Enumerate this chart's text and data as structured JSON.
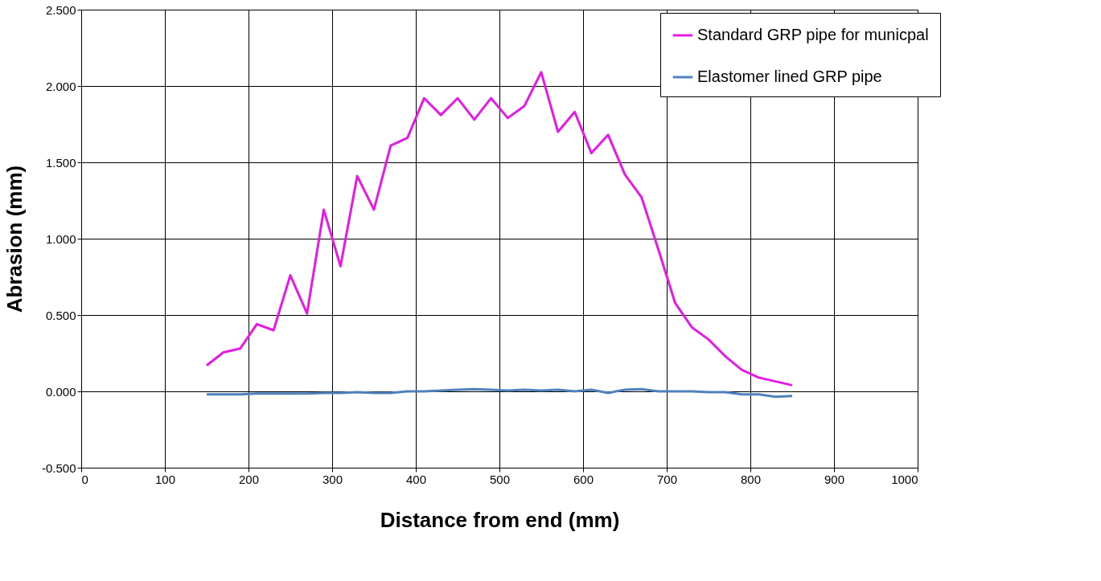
{
  "chart_data": {
    "type": "line",
    "xlabel": "Distance from end (mm)",
    "ylabel": "Abrasion (mm)",
    "x": [
      150,
      170,
      190,
      210,
      230,
      250,
      270,
      290,
      310,
      330,
      350,
      370,
      390,
      410,
      430,
      450,
      470,
      490,
      510,
      530,
      550,
      570,
      590,
      610,
      630,
      650,
      670,
      690,
      710,
      730,
      750,
      770,
      790,
      810,
      830,
      850
    ],
    "series": [
      {
        "name": "Standard GRP pipe for municpal",
        "color": "#e619e6",
        "values": [
          0.17,
          0.255,
          0.28,
          0.44,
          0.4,
          0.76,
          0.51,
          1.19,
          0.82,
          1.41,
          1.19,
          1.61,
          1.66,
          1.92,
          1.81,
          1.92,
          1.78,
          1.92,
          1.79,
          1.87,
          2.09,
          1.7,
          1.83,
          1.56,
          1.68,
          1.42,
          1.27,
          0.93,
          0.58,
          0.42,
          0.34,
          0.23,
          0.14,
          0.09,
          0.065,
          0.04
        ]
      },
      {
        "name": "Elastomer lined GRP pipe",
        "color": "#4f81bd",
        "values": [
          -0.02,
          -0.02,
          -0.02,
          -0.015,
          -0.015,
          -0.015,
          -0.015,
          -0.01,
          -0.01,
          -0.005,
          -0.01,
          -0.01,
          0.0,
          0.0,
          0.005,
          0.01,
          0.015,
          0.01,
          0.005,
          0.01,
          0.005,
          0.01,
          0.0,
          0.01,
          -0.01,
          0.01,
          0.015,
          0.0,
          0.0,
          0.0,
          -0.005,
          -0.005,
          -0.02,
          -0.02,
          -0.035,
          -0.03
        ]
      }
    ],
    "xlim": [
      0,
      1000
    ],
    "xticks": [
      0,
      100,
      200,
      300,
      400,
      500,
      600,
      700,
      800,
      900,
      1000
    ],
    "ylim": [
      -0.5,
      2.5
    ],
    "yticks": [
      {
        "value": -0.5,
        "label": "-0.500"
      },
      {
        "value": 0,
        "label": "0.000"
      },
      {
        "value": 0.5,
        "label": "0.500"
      },
      {
        "value": 1,
        "label": "1.000"
      },
      {
        "value": 1.5,
        "label": "1.500"
      },
      {
        "value": 2,
        "label": "2.000"
      },
      {
        "value": 2.5,
        "label": "2.500"
      }
    ],
    "grid": true,
    "legend": "top right",
    "marker": "none",
    "line_style": "solid"
  }
}
